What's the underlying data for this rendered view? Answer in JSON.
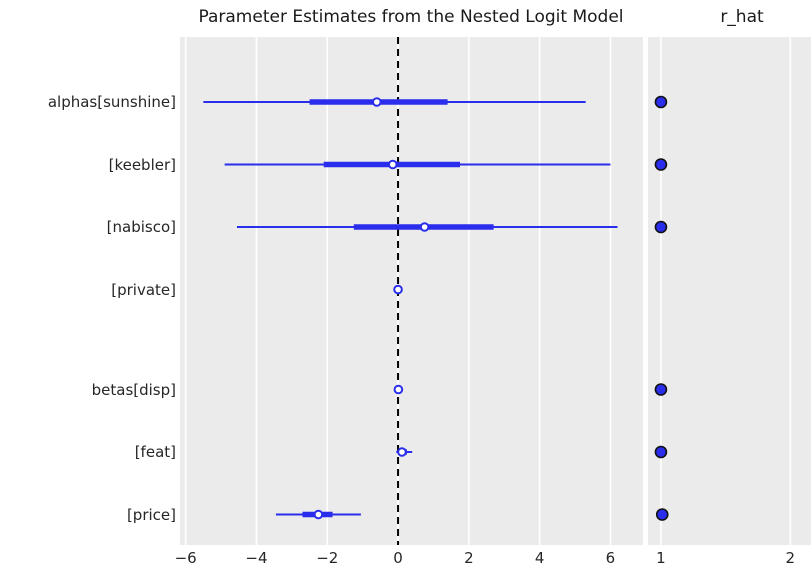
{
  "chart_data": {
    "type": "forest",
    "title": "Parameter Estimates from the Nested Logit Model",
    "rhat_title": "r_hat",
    "x_ticks": [
      -6,
      -4,
      -2,
      0,
      2,
      4,
      6
    ],
    "xlim": [
      -6.16,
      6.92
    ],
    "rhat_ticks": [
      1,
      2
    ],
    "rhat_xlim": [
      0.9,
      2.16
    ],
    "reference_line_x": 0,
    "legend_position": "none",
    "grid": "vertical-white-on-gray",
    "group_gap": 0.6,
    "groups": [
      {
        "name": "alphas",
        "rows": [
          {
            "label": "alphas[sunshine]",
            "hdi": [
              -5.5,
              5.3
            ],
            "iqr": [
              -2.5,
              1.4
            ],
            "median": -0.6,
            "r_hat": 1.0
          },
          {
            "label": "[keebler]",
            "hdi": [
              -4.9,
              6.0
            ],
            "iqr": [
              -2.1,
              1.75
            ],
            "median": -0.15,
            "r_hat": 1.0
          },
          {
            "label": "[nabisco]",
            "hdi": [
              -4.55,
              6.2
            ],
            "iqr": [
              -1.25,
              2.7
            ],
            "median": 0.75,
            "r_hat": 1.0
          },
          {
            "label": "[private]",
            "hdi": [
              -0.04,
              0.04
            ],
            "iqr": [
              -0.01,
              0.01
            ],
            "median": 0.0,
            "r_hat": null
          }
        ]
      },
      {
        "name": "betas",
        "rows": [
          {
            "label": "betas[disp]",
            "hdi": [
              -0.04,
              0.06
            ],
            "iqr": [
              -0.01,
              0.02
            ],
            "median": 0.01,
            "r_hat": 1.0
          },
          {
            "label": "[feat]",
            "hdi": [
              -0.05,
              0.4
            ],
            "iqr": [
              0.03,
              0.25
            ],
            "median": 0.11,
            "r_hat": 1.0
          },
          {
            "label": "[price]",
            "hdi": [
              -3.45,
              -1.05
            ],
            "iqr": [
              -2.7,
              -1.85
            ],
            "median": -2.25,
            "r_hat": 1.01
          }
        ]
      }
    ],
    "colors": {
      "line": "#2a2eec",
      "marker_face": "#ffffff",
      "rhat_dot_fill": "#2a2eec",
      "rhat_dot_edge": "#111111",
      "panel_bg": "#ebebeb",
      "grid": "#ffffff",
      "reference_line": "#000000",
      "text": "#262626"
    }
  }
}
